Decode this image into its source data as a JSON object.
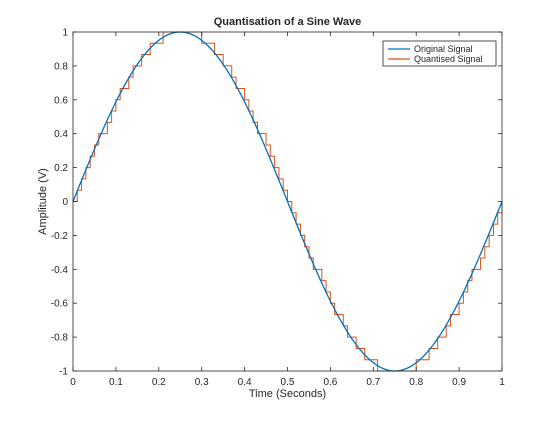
{
  "chart_data": {
    "type": "line",
    "title": "Quantisation of a Sine Wave",
    "xlabel": "Time (Seconds)",
    "ylabel": "Amplitude (V)",
    "xlim": [
      0,
      1
    ],
    "ylim": [
      -1,
      1
    ],
    "xticks": [
      "0",
      "0.1",
      "0.2",
      "0.3",
      "0.4",
      "0.5",
      "0.6",
      "0.7",
      "0.8",
      "0.9",
      "1"
    ],
    "yticks": [
      "1",
      "0.8",
      "0.6",
      "0.4",
      "0.2",
      "0",
      "-0.2",
      "-0.4",
      "-0.6",
      "-0.8",
      "-1"
    ],
    "grid": false,
    "legend_position": "top-right",
    "series": [
      {
        "name": "Original Signal",
        "color": "#0072BD",
        "function": "sin(2*pi*t)",
        "x_range": [
          0,
          1
        ],
        "step": 0.005
      },
      {
        "name": "Quantised Signal",
        "color": "#D95319",
        "style": "stairs",
        "sample_interval": 0.01,
        "quantisation_step": 0.0667,
        "x_range": [
          0,
          1
        ]
      }
    ]
  }
}
